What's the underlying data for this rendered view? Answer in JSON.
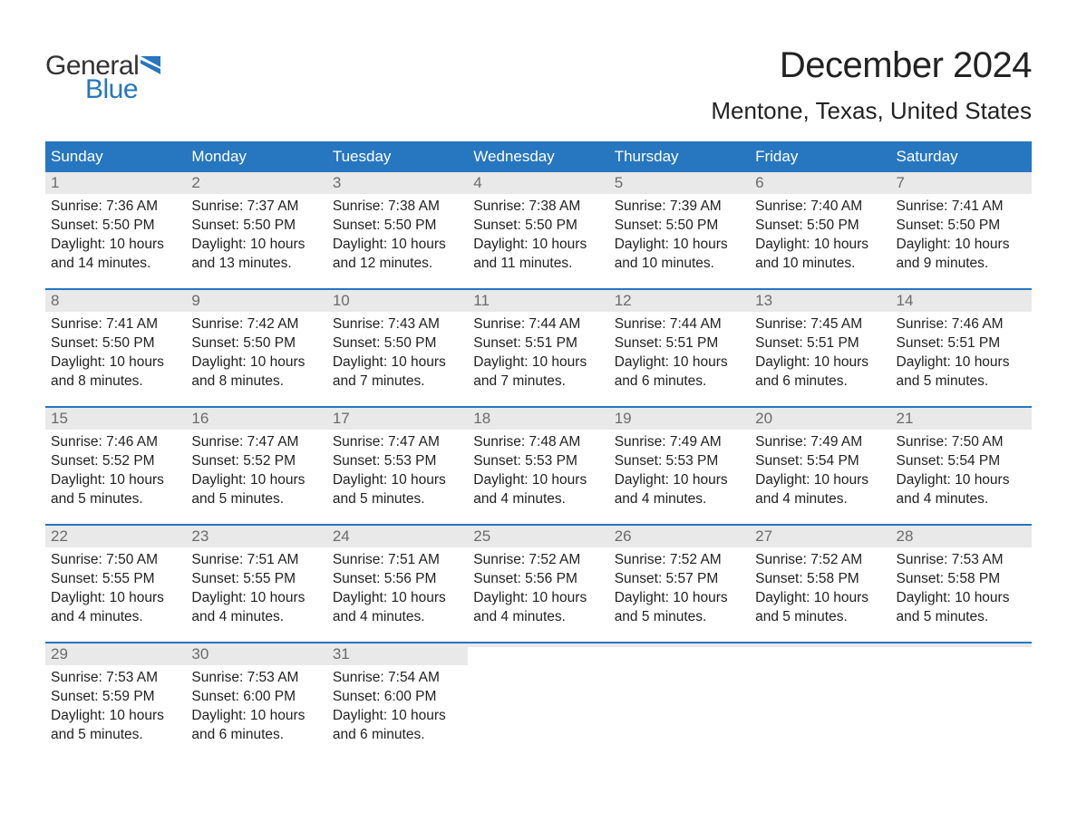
{
  "logo": {
    "text_general": "General",
    "text_blue": "Blue",
    "flag_color": "#2676c0"
  },
  "title": "December 2024",
  "location": "Mentone, Texas, United States",
  "colors": {
    "header_bg": "#2676c0",
    "header_text": "#ffffff",
    "daynum_bg": "#e9e9e9",
    "daynum_text": "#6b6b6b",
    "body_text": "#222222",
    "week_divider": "#2676c0",
    "background": "#ffffff"
  },
  "fonts": {
    "title_size_pt": 30,
    "location_size_pt": 20,
    "dayhead_size_pt": 13,
    "body_size_pt": 12
  },
  "day_names": [
    "Sunday",
    "Monday",
    "Tuesday",
    "Wednesday",
    "Thursday",
    "Friday",
    "Saturday"
  ],
  "weeks": [
    [
      {
        "num": "1",
        "sunrise": "Sunrise: 7:36 AM",
        "sunset": "Sunset: 5:50 PM",
        "d1": "Daylight: 10 hours",
        "d2": "and 14 minutes."
      },
      {
        "num": "2",
        "sunrise": "Sunrise: 7:37 AM",
        "sunset": "Sunset: 5:50 PM",
        "d1": "Daylight: 10 hours",
        "d2": "and 13 minutes."
      },
      {
        "num": "3",
        "sunrise": "Sunrise: 7:38 AM",
        "sunset": "Sunset: 5:50 PM",
        "d1": "Daylight: 10 hours",
        "d2": "and 12 minutes."
      },
      {
        "num": "4",
        "sunrise": "Sunrise: 7:38 AM",
        "sunset": "Sunset: 5:50 PM",
        "d1": "Daylight: 10 hours",
        "d2": "and 11 minutes."
      },
      {
        "num": "5",
        "sunrise": "Sunrise: 7:39 AM",
        "sunset": "Sunset: 5:50 PM",
        "d1": "Daylight: 10 hours",
        "d2": "and 10 minutes."
      },
      {
        "num": "6",
        "sunrise": "Sunrise: 7:40 AM",
        "sunset": "Sunset: 5:50 PM",
        "d1": "Daylight: 10 hours",
        "d2": "and 10 minutes."
      },
      {
        "num": "7",
        "sunrise": "Sunrise: 7:41 AM",
        "sunset": "Sunset: 5:50 PM",
        "d1": "Daylight: 10 hours",
        "d2": "and 9 minutes."
      }
    ],
    [
      {
        "num": "8",
        "sunrise": "Sunrise: 7:41 AM",
        "sunset": "Sunset: 5:50 PM",
        "d1": "Daylight: 10 hours",
        "d2": "and 8 minutes."
      },
      {
        "num": "9",
        "sunrise": "Sunrise: 7:42 AM",
        "sunset": "Sunset: 5:50 PM",
        "d1": "Daylight: 10 hours",
        "d2": "and 8 minutes."
      },
      {
        "num": "10",
        "sunrise": "Sunrise: 7:43 AM",
        "sunset": "Sunset: 5:50 PM",
        "d1": "Daylight: 10 hours",
        "d2": "and 7 minutes."
      },
      {
        "num": "11",
        "sunrise": "Sunrise: 7:44 AM",
        "sunset": "Sunset: 5:51 PM",
        "d1": "Daylight: 10 hours",
        "d2": "and 7 minutes."
      },
      {
        "num": "12",
        "sunrise": "Sunrise: 7:44 AM",
        "sunset": "Sunset: 5:51 PM",
        "d1": "Daylight: 10 hours",
        "d2": "and 6 minutes."
      },
      {
        "num": "13",
        "sunrise": "Sunrise: 7:45 AM",
        "sunset": "Sunset: 5:51 PM",
        "d1": "Daylight: 10 hours",
        "d2": "and 6 minutes."
      },
      {
        "num": "14",
        "sunrise": "Sunrise: 7:46 AM",
        "sunset": "Sunset: 5:51 PM",
        "d1": "Daylight: 10 hours",
        "d2": "and 5 minutes."
      }
    ],
    [
      {
        "num": "15",
        "sunrise": "Sunrise: 7:46 AM",
        "sunset": "Sunset: 5:52 PM",
        "d1": "Daylight: 10 hours",
        "d2": "and 5 minutes."
      },
      {
        "num": "16",
        "sunrise": "Sunrise: 7:47 AM",
        "sunset": "Sunset: 5:52 PM",
        "d1": "Daylight: 10 hours",
        "d2": "and 5 minutes."
      },
      {
        "num": "17",
        "sunrise": "Sunrise: 7:47 AM",
        "sunset": "Sunset: 5:53 PM",
        "d1": "Daylight: 10 hours",
        "d2": "and 5 minutes."
      },
      {
        "num": "18",
        "sunrise": "Sunrise: 7:48 AM",
        "sunset": "Sunset: 5:53 PM",
        "d1": "Daylight: 10 hours",
        "d2": "and 4 minutes."
      },
      {
        "num": "19",
        "sunrise": "Sunrise: 7:49 AM",
        "sunset": "Sunset: 5:53 PM",
        "d1": "Daylight: 10 hours",
        "d2": "and 4 minutes."
      },
      {
        "num": "20",
        "sunrise": "Sunrise: 7:49 AM",
        "sunset": "Sunset: 5:54 PM",
        "d1": "Daylight: 10 hours",
        "d2": "and 4 minutes."
      },
      {
        "num": "21",
        "sunrise": "Sunrise: 7:50 AM",
        "sunset": "Sunset: 5:54 PM",
        "d1": "Daylight: 10 hours",
        "d2": "and 4 minutes."
      }
    ],
    [
      {
        "num": "22",
        "sunrise": "Sunrise: 7:50 AM",
        "sunset": "Sunset: 5:55 PM",
        "d1": "Daylight: 10 hours",
        "d2": "and 4 minutes."
      },
      {
        "num": "23",
        "sunrise": "Sunrise: 7:51 AM",
        "sunset": "Sunset: 5:55 PM",
        "d1": "Daylight: 10 hours",
        "d2": "and 4 minutes."
      },
      {
        "num": "24",
        "sunrise": "Sunrise: 7:51 AM",
        "sunset": "Sunset: 5:56 PM",
        "d1": "Daylight: 10 hours",
        "d2": "and 4 minutes."
      },
      {
        "num": "25",
        "sunrise": "Sunrise: 7:52 AM",
        "sunset": "Sunset: 5:56 PM",
        "d1": "Daylight: 10 hours",
        "d2": "and 4 minutes."
      },
      {
        "num": "26",
        "sunrise": "Sunrise: 7:52 AM",
        "sunset": "Sunset: 5:57 PM",
        "d1": "Daylight: 10 hours",
        "d2": "and 5 minutes."
      },
      {
        "num": "27",
        "sunrise": "Sunrise: 7:52 AM",
        "sunset": "Sunset: 5:58 PM",
        "d1": "Daylight: 10 hours",
        "d2": "and 5 minutes."
      },
      {
        "num": "28",
        "sunrise": "Sunrise: 7:53 AM",
        "sunset": "Sunset: 5:58 PM",
        "d1": "Daylight: 10 hours",
        "d2": "and 5 minutes."
      }
    ],
    [
      {
        "num": "29",
        "sunrise": "Sunrise: 7:53 AM",
        "sunset": "Sunset: 5:59 PM",
        "d1": "Daylight: 10 hours",
        "d2": "and 5 minutes."
      },
      {
        "num": "30",
        "sunrise": "Sunrise: 7:53 AM",
        "sunset": "Sunset: 6:00 PM",
        "d1": "Daylight: 10 hours",
        "d2": "and 6 minutes."
      },
      {
        "num": "31",
        "sunrise": "Sunrise: 7:54 AM",
        "sunset": "Sunset: 6:00 PM",
        "d1": "Daylight: 10 hours",
        "d2": "and 6 minutes."
      },
      {
        "empty": true
      },
      {
        "empty": true
      },
      {
        "empty": true
      },
      {
        "empty": true
      }
    ]
  ]
}
